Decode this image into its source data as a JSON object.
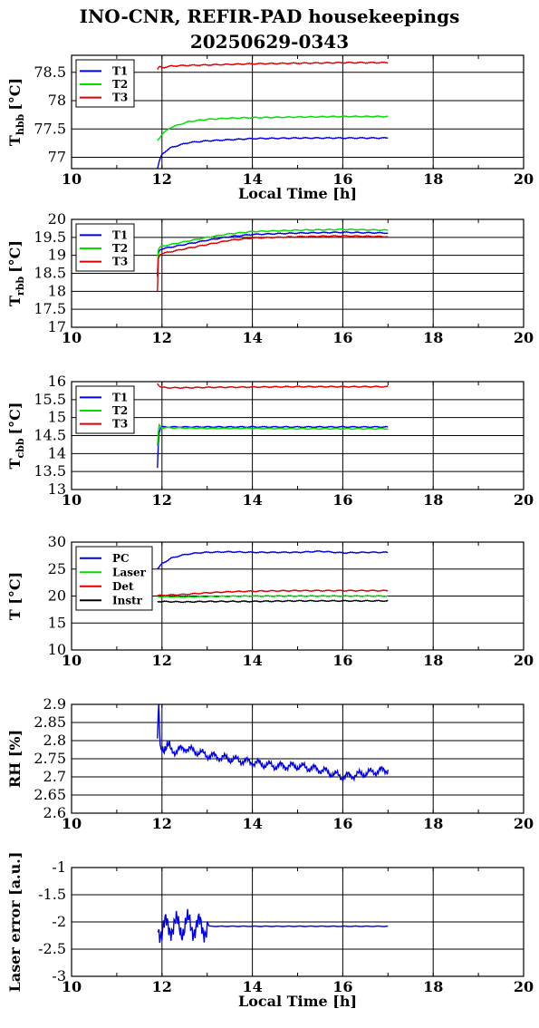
{
  "title": {
    "line1": "INO-CNR, REFIR-PAD housekeepings",
    "line2": "20250629-0343"
  },
  "chart_data": [
    {
      "type": "line",
      "ylabel_main": "T",
      "ylabel_sub": "hbb",
      "ylabel_unit": "[°C]",
      "xlabel": "Local Time [h]",
      "xlim": [
        10,
        20
      ],
      "ylim": [
        76.8,
        78.8
      ],
      "x_ticks": [
        10,
        12,
        14,
        16,
        18,
        20
      ],
      "y_ticks": [
        77,
        77.5,
        78,
        78.5
      ],
      "grid": true,
      "legend_position": "top-left",
      "series": [
        {
          "name": "T1",
          "color": "#0000e6",
          "x": [
            11.9,
            11.95,
            12.0,
            12.1,
            12.2,
            12.4,
            12.6,
            13.0,
            13.5,
            14.0,
            15.0,
            16.0,
            17.0
          ],
          "y": [
            76.8,
            76.95,
            77.05,
            77.12,
            77.17,
            77.22,
            77.26,
            77.29,
            77.31,
            77.33,
            77.34,
            77.34,
            77.34
          ]
        },
        {
          "name": "T2",
          "color": "#00dd00",
          "x": [
            11.9,
            12.0,
            12.1,
            12.2,
            12.4,
            12.6,
            13.0,
            13.5,
            14.0,
            15.0,
            16.0,
            17.0
          ],
          "y": [
            77.3,
            77.4,
            77.47,
            77.53,
            77.58,
            77.63,
            77.67,
            77.69,
            77.7,
            77.71,
            77.72,
            77.72
          ]
        },
        {
          "name": "T3",
          "color": "#dd0000",
          "x": [
            11.9,
            11.95,
            12.0,
            12.2,
            12.5,
            13.0,
            13.5,
            14.0,
            15.0,
            16.0,
            17.0
          ],
          "y": [
            78.55,
            78.6,
            78.58,
            78.61,
            78.62,
            78.63,
            78.64,
            78.65,
            78.66,
            78.67,
            78.67
          ]
        }
      ]
    },
    {
      "type": "line",
      "ylabel_main": "T",
      "ylabel_sub": "rbb",
      "ylabel_unit": "[°C]",
      "xlabel": "",
      "xlim": [
        10,
        20
      ],
      "ylim": [
        17,
        20
      ],
      "x_ticks": [
        10,
        12,
        14,
        16,
        18,
        20
      ],
      "y_ticks": [
        17,
        17.5,
        18,
        18.5,
        19,
        19.5,
        20
      ],
      "grid": true,
      "legend_position": "top-left",
      "series": [
        {
          "name": "T1",
          "color": "#0000e6",
          "x": [
            11.9,
            11.92,
            11.95,
            12.0,
            12.5,
            13.0,
            13.5,
            14.0,
            15.0,
            16.0,
            17.0
          ],
          "y": [
            18.4,
            19.05,
            19.15,
            19.18,
            19.3,
            19.42,
            19.52,
            19.58,
            19.62,
            19.64,
            19.62
          ]
        },
        {
          "name": "T2",
          "color": "#00dd00",
          "x": [
            11.9,
            11.92,
            11.95,
            12.0,
            12.5,
            13.0,
            13.5,
            14.0,
            15.0,
            16.0,
            17.0
          ],
          "y": [
            18.6,
            19.15,
            19.22,
            19.25,
            19.38,
            19.5,
            19.6,
            19.66,
            19.7,
            19.72,
            19.7
          ]
        },
        {
          "name": "T3",
          "color": "#dd0000",
          "x": [
            11.9,
            11.92,
            11.95,
            12.0,
            12.5,
            13.0,
            13.5,
            14.0,
            15.0,
            16.0,
            17.0
          ],
          "y": [
            18.0,
            18.9,
            19.02,
            19.05,
            19.18,
            19.3,
            19.42,
            19.48,
            19.52,
            19.54,
            19.52
          ]
        }
      ]
    },
    {
      "type": "line",
      "ylabel_main": "T",
      "ylabel_sub": "cbb",
      "ylabel_unit": "[°C]",
      "xlabel": "",
      "xlim": [
        10,
        20
      ],
      "ylim": [
        13,
        16
      ],
      "x_ticks": [
        10,
        12,
        14,
        16,
        18,
        20
      ],
      "y_ticks": [
        13,
        13.5,
        14,
        14.5,
        15,
        15.5,
        16
      ],
      "grid": true,
      "legend_position": "top-left",
      "series": [
        {
          "name": "T1",
          "color": "#0000e6",
          "x": [
            11.9,
            11.92,
            11.94,
            11.97,
            12.0,
            12.5,
            13.0,
            14.0,
            15.0,
            16.0,
            17.0
          ],
          "y": [
            13.6,
            14.3,
            14.6,
            14.72,
            14.74,
            14.74,
            14.74,
            14.74,
            14.74,
            14.74,
            14.74
          ]
        },
        {
          "name": "T2",
          "color": "#00dd00",
          "x": [
            11.9,
            11.92,
            11.94,
            11.97,
            12.0,
            12.5,
            13.0,
            14.0,
            15.0,
            16.0,
            17.0
          ],
          "y": [
            14.2,
            14.6,
            14.8,
            14.75,
            14.72,
            14.71,
            14.7,
            14.7,
            14.69,
            14.69,
            14.69
          ]
        },
        {
          "name": "T3",
          "color": "#dd0000",
          "x": [
            11.9,
            11.95,
            12.0,
            12.2,
            12.5,
            13.0,
            14.0,
            15.0,
            16.0,
            17.0
          ],
          "y": [
            15.95,
            15.87,
            15.84,
            15.83,
            15.83,
            15.84,
            15.85,
            15.86,
            15.86,
            15.86
          ]
        }
      ]
    },
    {
      "type": "line",
      "ylabel_main": "T [°C]",
      "ylabel_sub": "",
      "ylabel_unit": "",
      "xlabel": "",
      "xlim": [
        10,
        20
      ],
      "ylim": [
        10,
        30
      ],
      "x_ticks": [
        10,
        12,
        14,
        16,
        18,
        20
      ],
      "y_ticks": [
        10,
        15,
        20,
        25,
        30
      ],
      "grid": true,
      "legend_position": "top-left",
      "series": [
        {
          "name": "PC",
          "color": "#0000e6",
          "x": [
            11.9,
            12.0,
            12.2,
            12.4,
            12.6,
            12.8,
            13.0,
            13.5,
            14.0,
            15.0,
            15.5,
            16.0,
            16.5,
            17.0
          ],
          "y": [
            25.0,
            26.0,
            27.0,
            27.5,
            27.8,
            28.0,
            28.1,
            28.2,
            28.1,
            28.1,
            28.3,
            28.0,
            28.1,
            28.1
          ]
        },
        {
          "name": "Laser",
          "color": "#00dd00",
          "x": [
            11.9,
            12.5,
            13.0,
            14.0,
            15.0,
            16.0,
            17.0
          ],
          "y": [
            19.9,
            19.8,
            19.9,
            20.0,
            20.0,
            20.0,
            20.0
          ]
        },
        {
          "name": "Det",
          "color": "#dd0000",
          "x": [
            11.9,
            12.5,
            13.0,
            13.5,
            14.0,
            15.0,
            16.0,
            17.0
          ],
          "y": [
            20.1,
            20.3,
            20.6,
            20.8,
            20.9,
            21.0,
            21.0,
            21.0
          ]
        },
        {
          "name": "Instr",
          "color": "#000000",
          "x": [
            11.9,
            12.5,
            13.0,
            14.0,
            15.0,
            16.0,
            17.0
          ],
          "y": [
            19.0,
            18.9,
            19.0,
            19.0,
            19.1,
            19.1,
            19.1
          ]
        }
      ]
    },
    {
      "type": "line",
      "ylabel_main": "RH [%]",
      "ylabel_sub": "",
      "ylabel_unit": "",
      "xlabel": "",
      "xlim": [
        10,
        20
      ],
      "ylim": [
        2.6,
        2.9
      ],
      "x_ticks": [
        10,
        12,
        14,
        16,
        18,
        20
      ],
      "y_ticks": [
        2.6,
        2.65,
        2.7,
        2.75,
        2.8,
        2.85,
        2.9
      ],
      "grid": true,
      "legend_position": "",
      "series": [
        {
          "name": "",
          "color": "#0000e6",
          "x": [
            11.9,
            11.93,
            11.96,
            12.0,
            12.1,
            12.3,
            12.5,
            13.0,
            13.5,
            14.0,
            14.5,
            15.0,
            15.5,
            16.0,
            16.5,
            17.0
          ],
          "y": [
            2.8,
            2.89,
            2.78,
            2.79,
            2.78,
            2.77,
            2.78,
            2.76,
            2.75,
            2.74,
            2.73,
            2.73,
            2.72,
            2.7,
            2.71,
            2.72
          ]
        }
      ]
    },
    {
      "type": "line",
      "ylabel_main": "Laser error [a.u.]",
      "ylabel_sub": "",
      "ylabel_unit": "",
      "xlabel": "Local Time [h]",
      "xlim": [
        10,
        20
      ],
      "ylim": [
        -3,
        -1
      ],
      "x_ticks": [
        10,
        12,
        14,
        16,
        18,
        20
      ],
      "y_ticks": [
        -3,
        -2.5,
        -2,
        -1.5,
        -1
      ],
      "grid": true,
      "legend_position": "",
      "series": [
        {
          "name": "",
          "color": "#0000e6",
          "x": [
            11.9,
            12.0,
            12.2,
            12.4,
            12.6,
            12.8,
            13.0,
            13.1,
            14.0,
            15.0,
            16.0,
            17.0
          ],
          "y": [
            -2.05,
            -2.15,
            -2.05,
            -2.1,
            -2.05,
            -2.1,
            -2.08,
            -2.08,
            -2.08,
            -2.08,
            -2.08,
            -2.08
          ]
        }
      ]
    }
  ]
}
